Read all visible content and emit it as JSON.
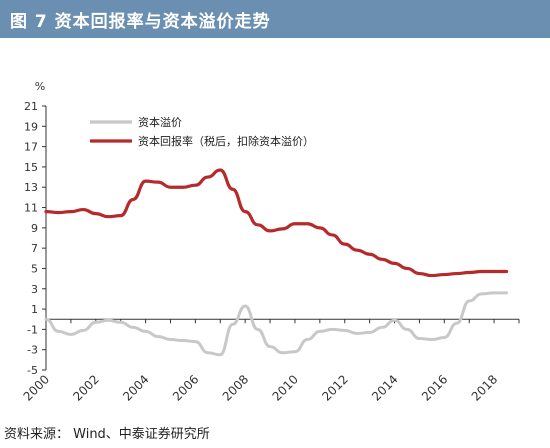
{
  "header": {
    "title": "图 7  资本回报率与资本溢价走势",
    "background": "#6b8fb0"
  },
  "footer": {
    "source": "资料来源： Wind、中泰证券研究所"
  },
  "chart_data": {
    "type": "line",
    "y_unit": "%",
    "ylim": [
      -5,
      21
    ],
    "y_ticks": [
      "21",
      "19",
      "17",
      "15",
      "13",
      "11",
      "9",
      "7",
      "5",
      "3",
      "1",
      "-1",
      "-3",
      "-5"
    ],
    "x_ticks": [
      "2000",
      "2002",
      "2004",
      "2006",
      "2008",
      "2010",
      "2012",
      "2014",
      "2016",
      "2018"
    ],
    "xlim": [
      2000,
      2019
    ],
    "grid": false,
    "legend_position": "top-left",
    "series": [
      {
        "name": "资本溢价",
        "color": "#c8c8c8",
        "x": [
          2000,
          2000.5,
          2001,
          2001.5,
          2002,
          2002.5,
          2003,
          2003.5,
          2004,
          2004.5,
          2005,
          2005.5,
          2006,
          2006.5,
          2007,
          2007.5,
          2008,
          2008.5,
          2009,
          2009.5,
          2010,
          2010.5,
          2011,
          2011.5,
          2012,
          2012.5,
          2013,
          2013.5,
          2014,
          2014.5,
          2015,
          2015.5,
          2016,
          2016.5,
          2017,
          2017.5,
          2018,
          2018.5
        ],
        "values": [
          0,
          -1.2,
          -1.5,
          -1.1,
          -0.3,
          -0.1,
          -0.3,
          -0.8,
          -1.2,
          -1.7,
          -2.0,
          -2.1,
          -2.2,
          -3.3,
          -3.5,
          -0.5,
          1.3,
          -1.0,
          -2.7,
          -3.3,
          -3.2,
          -2.0,
          -1.2,
          -1.0,
          -1.1,
          -1.4,
          -1.3,
          -0.8,
          -0.1,
          -1.0,
          -1.9,
          -2.0,
          -1.8,
          -0.4,
          1.8,
          2.5,
          2.6,
          2.6
        ]
      },
      {
        "name": "资本回报率（税后，扣除资本溢价）",
        "color": "#b52a2a",
        "x": [
          2000,
          2000.5,
          2001,
          2001.5,
          2002,
          2002.5,
          2003,
          2003.5,
          2004,
          2004.5,
          2005,
          2005.5,
          2006,
          2006.5,
          2007,
          2007.5,
          2008,
          2008.5,
          2009,
          2009.5,
          2010,
          2010.5,
          2011,
          2011.5,
          2012,
          2012.5,
          2013,
          2013.5,
          2014,
          2014.5,
          2015,
          2015.5,
          2016,
          2016.5,
          2017,
          2017.5,
          2018,
          2018.5
        ],
        "values": [
          10.6,
          10.5,
          10.6,
          10.8,
          10.4,
          10.1,
          10.2,
          11.8,
          13.6,
          13.5,
          13.0,
          13.0,
          13.2,
          14.0,
          14.7,
          12.8,
          10.6,
          9.3,
          8.7,
          8.9,
          9.4,
          9.4,
          9.0,
          8.3,
          7.4,
          6.8,
          6.4,
          5.9,
          5.5,
          5.0,
          4.5,
          4.3,
          4.4,
          4.5,
          4.6,
          4.7,
          4.7,
          4.7
        ]
      }
    ]
  }
}
